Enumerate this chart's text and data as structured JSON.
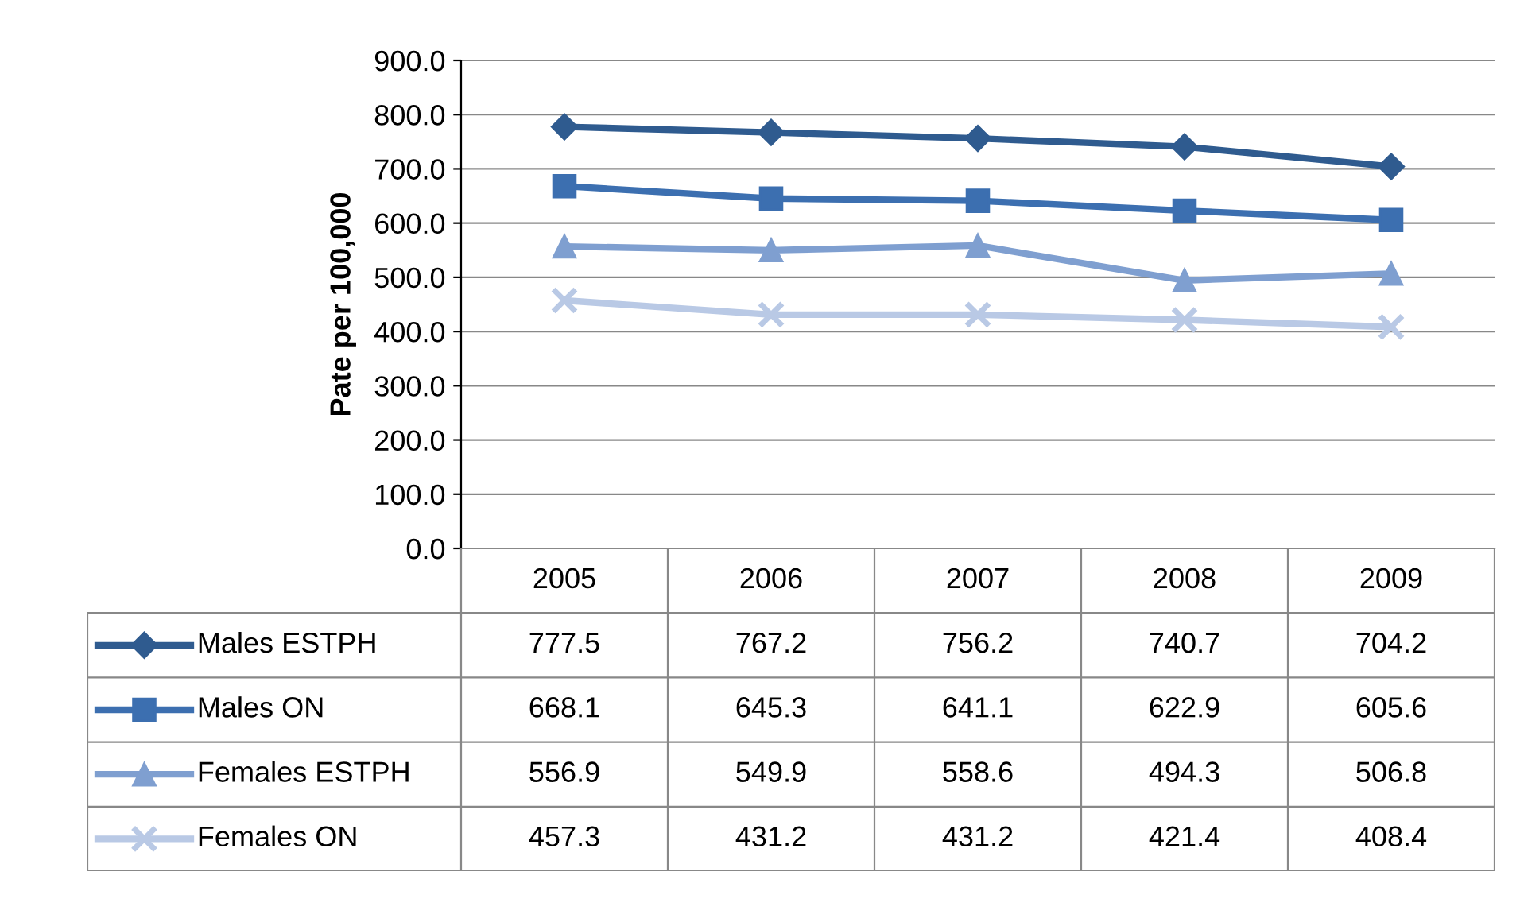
{
  "chart_data": {
    "type": "line",
    "ylabel": "Pate per 100,000",
    "categories": [
      "2005",
      "2006",
      "2007",
      "2008",
      "2009"
    ],
    "series": [
      {
        "name": "Males ESTPH",
        "color": "#2f5b8f",
        "marker": "diamond",
        "values": [
          777.5,
          767.2,
          756.2,
          740.7,
          704.2
        ]
      },
      {
        "name": "Males ON",
        "color": "#3c6fb0",
        "marker": "square",
        "values": [
          668.1,
          645.3,
          641.1,
          622.9,
          605.6
        ]
      },
      {
        "name": "Females ESTPH",
        "color": "#7f9fd0",
        "marker": "triangle",
        "values": [
          556.9,
          549.9,
          558.6,
          494.3,
          506.8
        ]
      },
      {
        "name": "Females ON",
        "color": "#b9c9e5",
        "marker": "cross",
        "values": [
          457.3,
          431.2,
          431.2,
          421.4,
          408.4
        ]
      }
    ],
    "ylim": [
      0,
      900
    ],
    "yticks": [
      {
        "value": 0,
        "label": "0.0"
      },
      {
        "value": 100,
        "label": "100.0"
      },
      {
        "value": 200,
        "label": "200.0"
      },
      {
        "value": 300,
        "label": "300.0"
      },
      {
        "value": 400,
        "label": "400.0"
      },
      {
        "value": 500,
        "label": "500.0"
      },
      {
        "value": 600,
        "label": "600.0"
      },
      {
        "value": 700,
        "label": "700.0"
      },
      {
        "value": 800,
        "label": "800.0"
      },
      {
        "value": 900,
        "label": "900.0"
      }
    ],
    "grid": "y",
    "legend": "bottom",
    "data_labels": true,
    "line_style": "solid"
  }
}
